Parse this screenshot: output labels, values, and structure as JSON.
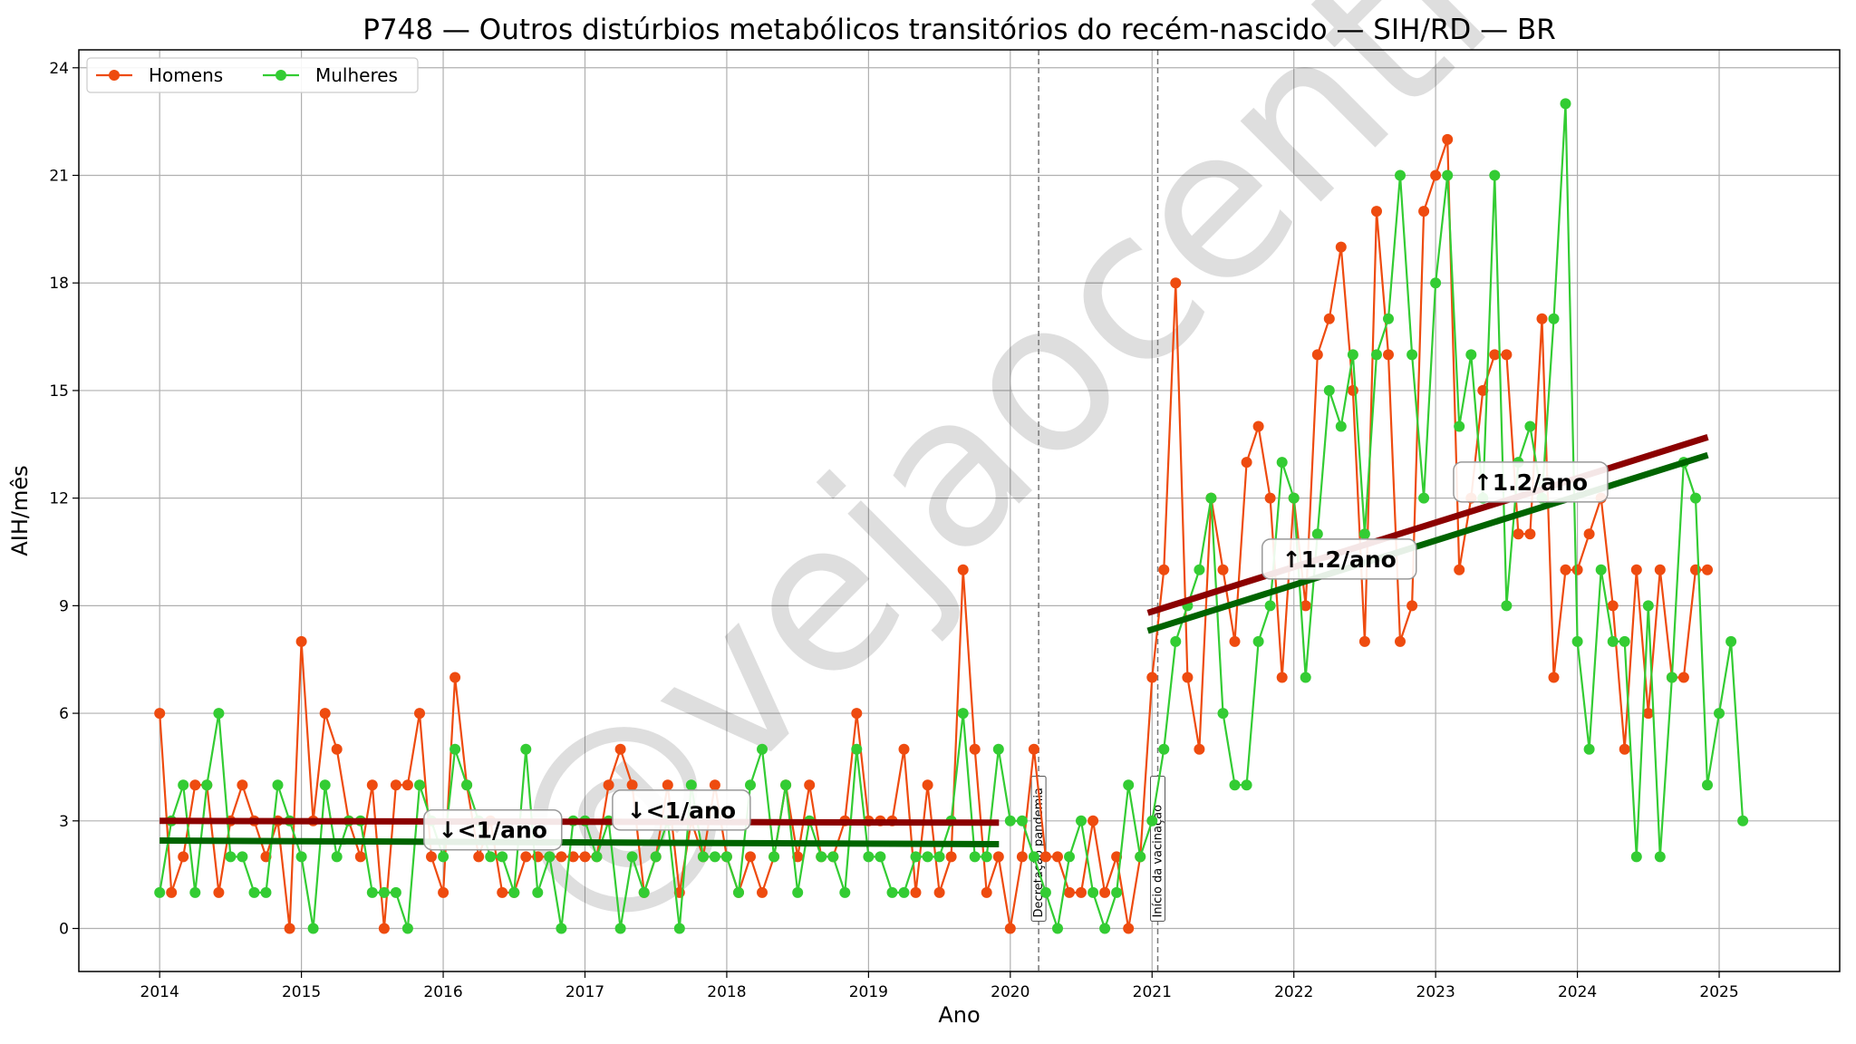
{
  "chart_data": {
    "type": "line",
    "title": "P748 — Outros distúrbios metabólicos transitórios do recém-nascido — SIH/RD — BR",
    "xlabel": "Ano",
    "ylabel": "AIH/mês",
    "ylim": [
      -1.2,
      24.5
    ],
    "xlim": [
      2013.43,
      2025.85
    ],
    "yticks": [
      0,
      3,
      6,
      9,
      12,
      15,
      18,
      21,
      24
    ],
    "xticks": [
      2014,
      2015,
      2016,
      2017,
      2018,
      2019,
      2020,
      2021,
      2022,
      2023,
      2024,
      2025
    ],
    "grid": true,
    "legend": "top-left",
    "watermark": "@vejaocentro",
    "x_start": "2014-01",
    "series": [
      {
        "name": "Homens",
        "color": "#ee4b0f",
        "values": [
          6,
          1,
          2,
          4,
          4,
          1,
          3,
          4,
          3,
          2,
          3,
          0,
          8,
          3,
          6,
          5,
          3,
          2,
          4,
          0,
          4,
          4,
          6,
          2,
          1,
          7,
          4,
          2,
          3,
          1,
          1,
          2,
          2,
          2,
          2,
          2,
          2,
          2,
          4,
          5,
          4,
          1,
          2,
          4,
          1,
          3,
          2,
          4,
          2,
          1,
          2,
          1,
          2,
          4,
          2,
          4,
          2,
          2,
          3,
          6,
          3,
          3,
          3,
          5,
          1,
          4,
          1,
          2,
          10,
          5,
          1,
          2,
          0,
          2,
          5,
          2,
          2,
          1,
          1,
          3,
          1,
          2,
          0,
          2,
          7,
          10,
          18,
          7,
          5,
          12,
          10,
          8,
          13,
          14,
          12,
          7,
          12,
          9,
          16,
          17,
          19,
          15,
          8,
          20,
          16,
          8,
          9,
          20,
          21,
          22,
          10,
          12,
          15,
          16,
          16,
          11,
          11,
          17,
          7,
          10,
          10,
          11,
          12,
          9,
          5,
          10,
          6,
          10,
          7,
          7,
          10,
          10
        ],
        "trends": [
          {
            "from": 2014.0,
            "to": 2019.92,
            "y0": 3.0,
            "y1": 2.95,
            "color": "#8b0000",
            "label": "↓<1/ano"
          },
          {
            "from": 2020.97,
            "to": 2024.92,
            "y0": 8.8,
            "y1": 13.7,
            "color": "#8b0000",
            "label": "↑1.2/ano"
          }
        ]
      },
      {
        "name": "Mulheres",
        "color": "#33cc33",
        "values": [
          1,
          3,
          4,
          1,
          4,
          6,
          2,
          2,
          1,
          1,
          4,
          3,
          2,
          0,
          4,
          2,
          3,
          3,
          1,
          1,
          1,
          0,
          4,
          3,
          2,
          5,
          4,
          3,
          2,
          2,
          1,
          5,
          1,
          2,
          0,
          3,
          3,
          2,
          3,
          0,
          2,
          1,
          2,
          3,
          0,
          4,
          2,
          2,
          2,
          1,
          4,
          5,
          2,
          4,
          1,
          3,
          2,
          2,
          1,
          5,
          2,
          2,
          1,
          1,
          2,
          2,
          2,
          3,
          6,
          2,
          2,
          5,
          3,
          3,
          2,
          1,
          0,
          2,
          3,
          1,
          0,
          1,
          4,
          2,
          3,
          5,
          8,
          9,
          10,
          12,
          6,
          4,
          4,
          8,
          9,
          13,
          12,
          7,
          11,
          15,
          14,
          16,
          11,
          16,
          17,
          21,
          16,
          12,
          18,
          21,
          14,
          16,
          12,
          21,
          9,
          13,
          14,
          12,
          17,
          23,
          8,
          5,
          10,
          8,
          8,
          2,
          9,
          2,
          7,
          13,
          12,
          4,
          6,
          8,
          3
        ],
        "trends": [
          {
            "from": 2014.0,
            "to": 2019.92,
            "y0": 2.45,
            "y1": 2.35,
            "color": "#006400",
            "label": "↓<1/ano"
          },
          {
            "from": 2020.97,
            "to": 2024.92,
            "y0": 8.3,
            "y1": 13.2,
            "color": "#006400",
            "label": "↑1.2/ano"
          }
        ]
      }
    ],
    "annotations": [
      {
        "text": "↓<1/ano",
        "x": 2016.35,
        "y": 2.75
      },
      {
        "text": "↓<1/ano",
        "x": 2017.68,
        "y": 3.3
      },
      {
        "text": "↑1.2/ano",
        "x": 2022.32,
        "y": 10.3
      },
      {
        "text": "↑1.2/ano",
        "x": 2023.67,
        "y": 12.45
      }
    ],
    "events": [
      {
        "x": 2020.2,
        "label": "Decretação pandemia"
      },
      {
        "x": 2021.04,
        "label": "Início da vacinação"
      }
    ]
  }
}
